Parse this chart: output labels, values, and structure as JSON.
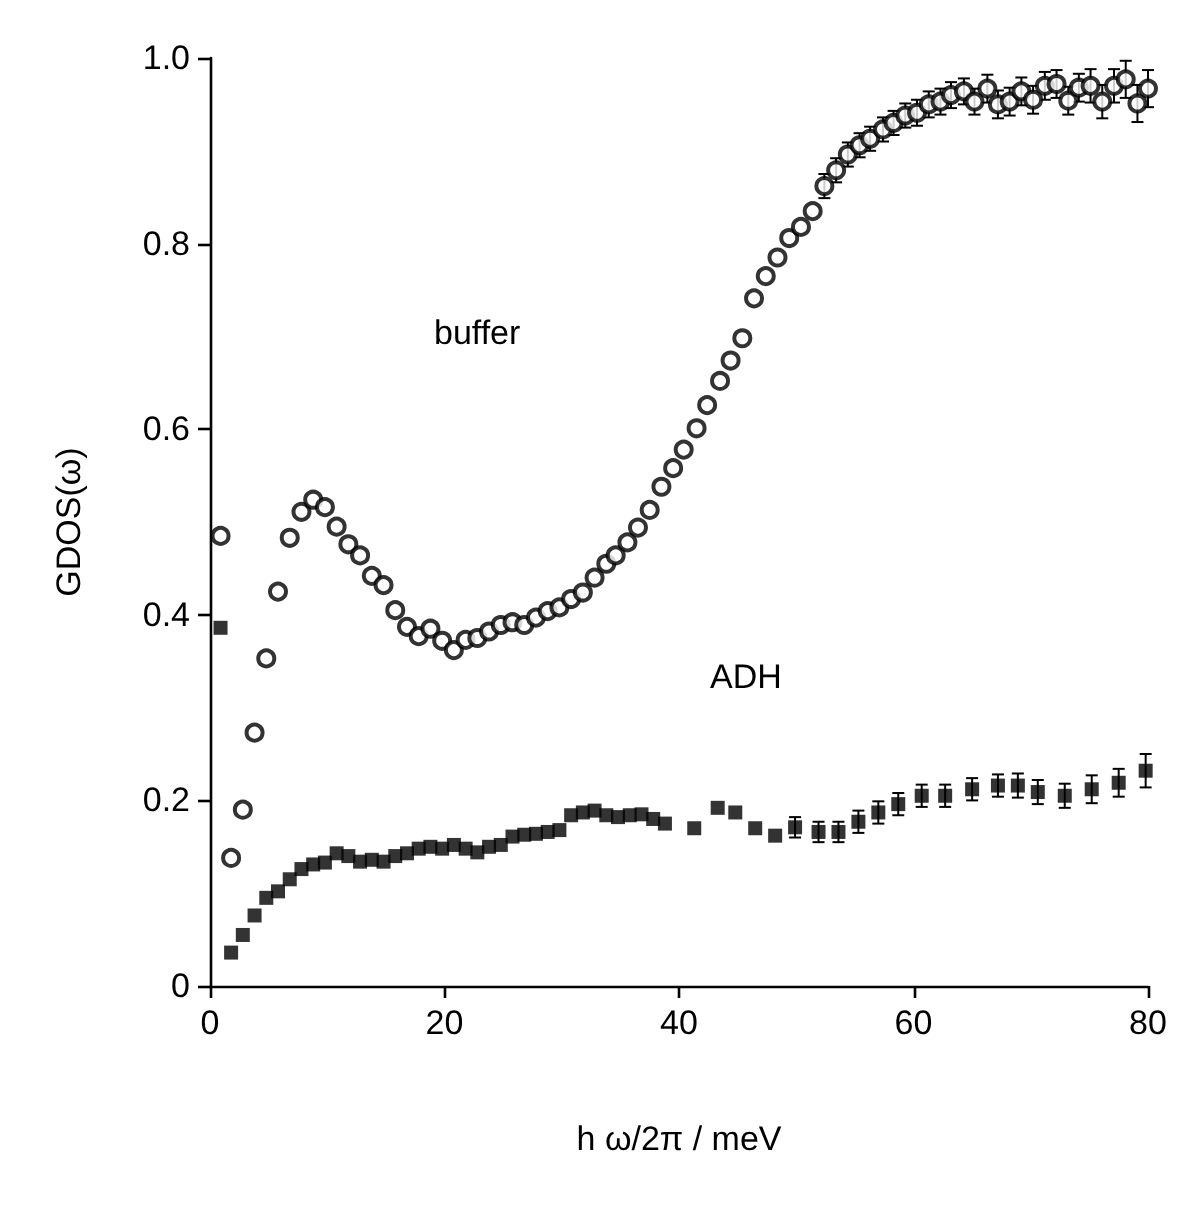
{
  "chart_data": {
    "type": "scatter",
    "xlabel": "h ω/2π / meV",
    "ylabel": "GDOS(ω)",
    "xlim": [
      0,
      80
    ],
    "xticks": [
      0,
      20,
      40,
      60,
      80
    ],
    "ylim": [
      0,
      1
    ],
    "yticks": [
      0,
      0.2,
      0.4,
      0.6,
      0.8,
      {
        "value": 1,
        "label": "1.0"
      }
    ],
    "grid": false,
    "annotations": [
      "buffer",
      "ADH"
    ],
    "series": [
      {
        "color": "#000000",
        "marker": "circle",
        "x": [
          0.9,
          1.8,
          2.8,
          3.8,
          4.8,
          5.8,
          6.8,
          7.8,
          8.8,
          9.8,
          10.8,
          11.8,
          12.8,
          13.8,
          14.8,
          15.8,
          16.8,
          17.8,
          18.8,
          19.8,
          20.8,
          21.8,
          22.8,
          23.8,
          24.8,
          25.8,
          26.8,
          27.8,
          28.8,
          29.8,
          30.8,
          31.8,
          32.8,
          33.8,
          34.6,
          35.6,
          36.5,
          37.5,
          38.5,
          39.5,
          40.4,
          41.5,
          42.4,
          43.5,
          44.4,
          45.4,
          46.4,
          47.4,
          48.4,
          49.4,
          50.4,
          51.4,
          52.4,
          53.4,
          54.4,
          55.4,
          56.3,
          57.4,
          58.3,
          59.3,
          60.3,
          61.3,
          62.3,
          63.2,
          64.3,
          65.2,
          66.3,
          67.2,
          68.2,
          69.2,
          70.2,
          71.2,
          72.2,
          73.2,
          74.1,
          75.1,
          76.1,
          77.1,
          78.1,
          79.1,
          80
        ],
        "values": [
          0.485,
          0.138,
          0.19,
          0.273,
          0.353,
          0.425,
          0.483,
          0.511,
          0.524,
          0.516,
          0.495,
          0.476,
          0.464,
          0.442,
          0.432,
          0.405,
          0.387,
          0.377,
          0.385,
          0.372,
          0.362,
          0.373,
          0.375,
          0.382,
          0.389,
          0.392,
          0.389,
          0.397,
          0.404,
          0.408,
          0.417,
          0.424,
          0.44,
          0.455,
          0.464,
          0.478,
          0.494,
          0.513,
          0.538,
          0.558,
          0.578,
          0.601,
          0.626,
          0.652,
          0.674,
          0.698,
          0.741,
          0.765,
          0.785,
          0.806,
          0.818,
          0.835,
          0.862,
          0.879,
          0.896,
          0.906,
          0.913,
          0.923,
          0.93,
          0.938,
          0.941,
          0.95,
          0.953,
          0.96,
          0.964,
          0.953,
          0.967,
          0.95,
          0.953,
          0.964,
          0.955,
          0.97,
          0.972,
          0.954,
          0.968,
          0.97,
          0.953,
          0.97,
          0.977,
          0.951,
          0.967
        ],
        "errors": [
          null,
          null,
          null,
          null,
          null,
          null,
          null,
          null,
          null,
          null,
          null,
          null,
          null,
          null,
          null,
          null,
          null,
          null,
          null,
          null,
          null,
          null,
          null,
          null,
          null,
          null,
          null,
          null,
          null,
          null,
          null,
          null,
          null,
          null,
          null,
          null,
          null,
          null,
          null,
          null,
          null,
          null,
          null,
          null,
          null,
          null,
          null,
          null,
          null,
          null,
          null,
          null,
          0.013,
          0.013,
          0.013,
          0.013,
          0.013,
          0.013,
          0.013,
          0.013,
          0.014,
          0.014,
          0.014,
          0.014,
          0.014,
          0.014,
          0.015,
          0.015,
          0.015,
          0.015,
          0.015,
          0.015,
          0.015,
          0.015,
          0.015,
          0.018,
          0.018,
          0.018,
          0.02,
          0.02,
          0.02
        ]
      },
      {
        "color": "#000000",
        "marker": "square",
        "x": [
          0.9,
          1.8,
          2.8,
          3.8,
          4.8,
          5.8,
          6.8,
          7.8,
          8.8,
          9.8,
          10.8,
          11.8,
          12.8,
          13.8,
          14.8,
          15.8,
          16.8,
          17.8,
          18.8,
          19.8,
          20.8,
          21.8,
          22.8,
          23.8,
          24.8,
          25.8,
          26.8,
          27.8,
          28.8,
          29.8,
          30.8,
          31.8,
          32.8,
          33.8,
          34.8,
          35.8,
          36.8,
          37.8,
          38.8,
          41.3,
          43.3,
          44.8,
          46.5,
          48.2,
          49.9,
          51.9,
          53.6,
          55.3,
          57,
          58.7,
          60.7,
          62.7,
          65,
          67.2,
          68.9,
          70.6,
          72.9,
          75.2,
          77.5,
          79.8
        ],
        "values": [
          0.386,
          0.036,
          0.055,
          0.076,
          0.095,
          0.102,
          0.115,
          0.126,
          0.131,
          0.133,
          0.143,
          0.14,
          0.134,
          0.136,
          0.134,
          0.14,
          0.143,
          0.148,
          0.15,
          0.148,
          0.152,
          0.148,
          0.144,
          0.15,
          0.152,
          0.161,
          0.163,
          0.164,
          0.166,
          0.168,
          0.184,
          0.187,
          0.189,
          0.184,
          0.182,
          0.184,
          0.185,
          0.18,
          0.175,
          0.17,
          0.192,
          0.187,
          0.17,
          0.162,
          0.171,
          0.166,
          0.166,
          0.177,
          0.187,
          0.196,
          0.205,
          0.205,
          0.212,
          0.216,
          0.216,
          0.209,
          0.205,
          0.212,
          0.219,
          0.232
        ],
        "errors": [
          null,
          null,
          null,
          null,
          null,
          null,
          null,
          null,
          null,
          null,
          null,
          null,
          null,
          null,
          null,
          null,
          null,
          null,
          null,
          null,
          null,
          null,
          null,
          null,
          null,
          null,
          null,
          null,
          null,
          null,
          null,
          null,
          null,
          null,
          null,
          null,
          null,
          null,
          null,
          null,
          null,
          null,
          null,
          null,
          0.011,
          0.011,
          0.011,
          0.012,
          0.012,
          0.012,
          0.012,
          0.012,
          0.012,
          0.012,
          0.013,
          0.013,
          0.013,
          0.015,
          0.015,
          0.018
        ]
      }
    ]
  }
}
